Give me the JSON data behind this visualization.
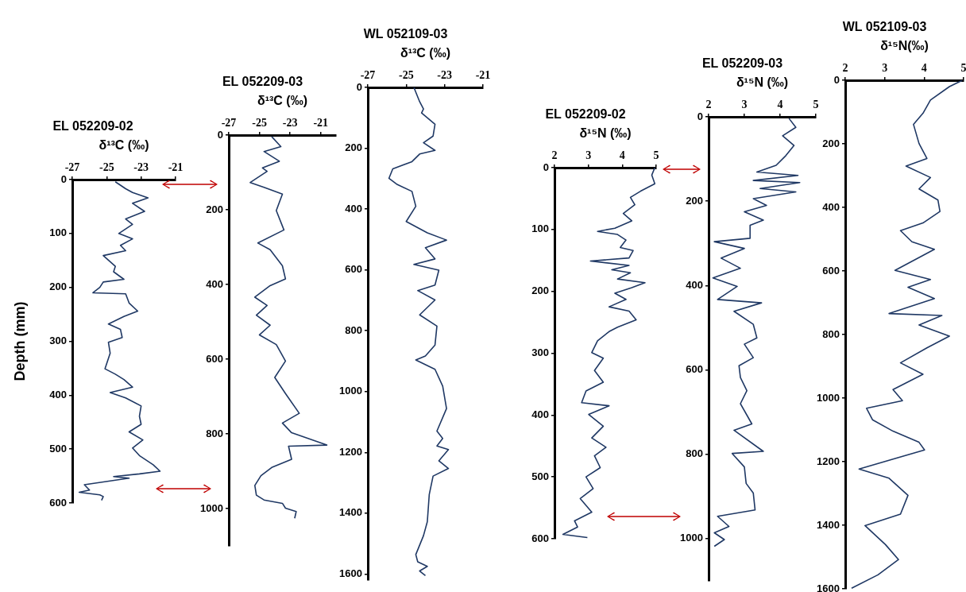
{
  "chart_data": [
    {
      "type": "line",
      "title": "EL 052209-02",
      "xlabel": "δ¹³C (‰)",
      "ylabel": "Depth (mm)",
      "xlim": [
        -27,
        -21
      ],
      "xticks": [
        -27,
        -25,
        -23,
        -21
      ],
      "ylim": [
        600,
        0
      ],
      "yticks": [
        0,
        100,
        200,
        300,
        400,
        500,
        600
      ],
      "grid": false,
      "series": [
        {
          "color": "#1f3864",
          "x": [
            -24.5,
            -23.9,
            -23.5,
            -22.6,
            -23.5,
            -22.8,
            -23.9,
            -23.5,
            -24.3,
            -23.5,
            -24.2,
            -23.9,
            -25.2,
            -24.5,
            -24.6,
            -24.0,
            -25.2,
            -25.4,
            -25.8,
            -23.9,
            -23.7,
            -23.2,
            -24.0,
            -24.9,
            -24.2,
            -24.1,
            -24.9,
            -24.8,
            -25.1,
            -24.5,
            -24.0,
            -23.5,
            -24.8,
            -23.9,
            -23.0,
            -23.1,
            -23.0,
            -23.7,
            -22.9,
            -23.5,
            -23.1,
            -22.3,
            -21.9,
            -23.1,
            -24.6,
            -23.7,
            -26.3,
            -26.0,
            -26.6,
            -25.4,
            -25.2,
            -25.3
          ],
          "values": [
            4,
            17,
            24,
            34,
            44,
            59,
            73,
            83,
            100,
            110,
            122,
            132,
            141,
            161,
            171,
            185,
            190,
            200,
            210,
            212,
            229,
            244,
            254,
            268,
            278,
            293,
            302,
            322,
            351,
            361,
            371,
            385,
            395,
            405,
            420,
            439,
            454,
            468,
            483,
            498,
            512,
            529,
            541,
            546,
            551,
            554,
            566,
            576,
            580,
            585,
            588,
            595
          ]
        }
      ]
    },
    {
      "type": "line",
      "title": "EL 052209-03",
      "xlabel": "δ¹³C (‰)",
      "xlim": [
        -27,
        -20
      ],
      "xticks": [
        -27,
        -25,
        -23,
        -21
      ],
      "ylim": [
        1100,
        0
      ],
      "yticks": [
        0,
        200,
        400,
        600,
        800,
        1000
      ],
      "grid": false,
      "series": [
        {
          "color": "#1f3864",
          "x": [
            -24.2,
            -23.6,
            -24.7,
            -23.7,
            -24.8,
            -24.5,
            -25.6,
            -24.7,
            -23.5,
            -23.9,
            -23.4,
            -25.1,
            -24.3,
            -23.5,
            -23.3,
            -24.3,
            -25.3,
            -24.5,
            -25.2,
            -24.3,
            -25.0,
            -23.9,
            -23.3,
            -24.0,
            -23.3,
            -22.4,
            -23.5,
            -22.9,
            -20.6,
            -23.1,
            -22.9,
            -24.2,
            -24.9,
            -25.3,
            -25.2,
            -24.7,
            -23.5,
            -23.3,
            -22.6,
            -22.7
          ],
          "values": [
            4,
            31,
            44,
            70,
            88,
            97,
            127,
            140,
            158,
            202,
            254,
            289,
            307,
            350,
            385,
            403,
            434,
            456,
            482,
            509,
            535,
            561,
            605,
            649,
            692,
            745,
            771,
            797,
            830,
            833,
            868,
            890,
            912,
            938,
            964,
            977,
            986,
            999,
            1008,
            1026
          ]
        }
      ]
    },
    {
      "type": "line",
      "title": "WL 052109-03",
      "xlabel": "δ¹³C (‰)",
      "xlim": [
        -27,
        -21
      ],
      "xticks": [
        -27,
        -25,
        -23,
        -21
      ],
      "ylim": [
        1620,
        0
      ],
      "yticks": [
        0,
        200,
        400,
        600,
        800,
        1000,
        1200,
        1400,
        1600
      ],
      "grid": false,
      "series": [
        {
          "color": "#1f3864",
          "x": [
            -24.6,
            -24.3,
            -24.1,
            -24.2,
            -23.5,
            -23.6,
            -24.1,
            -23.5,
            -24.3,
            -24.7,
            -25.7,
            -25.9,
            -25.5,
            -24.7,
            -24.5,
            -25.0,
            -23.9,
            -22.9,
            -24.0,
            -23.5,
            -24.6,
            -23.3,
            -23.5,
            -24.4,
            -23.5,
            -24.3,
            -23.4,
            -23.5,
            -24.0,
            -24.5,
            -23.5,
            -23.1,
            -22.9,
            -23.4,
            -23.1,
            -23.4,
            -22.8,
            -23.3,
            -22.8,
            -23.6,
            -23.8,
            -23.9,
            -24.1,
            -24.5,
            -24.4,
            -23.9,
            -24.3,
            -24.0
          ],
          "values": [
            0,
            47,
            71,
            84,
            121,
            160,
            182,
            207,
            219,
            244,
            268,
            299,
            318,
            342,
            391,
            441,
            478,
            502,
            527,
            564,
            582,
            601,
            650,
            668,
            699,
            748,
            785,
            847,
            883,
            896,
            927,
            982,
            1056,
            1130,
            1154,
            1179,
            1191,
            1228,
            1253,
            1278,
            1339,
            1428,
            1474,
            1536,
            1560,
            1575,
            1590,
            1605
          ]
        }
      ]
    },
    {
      "type": "line",
      "title": "EL 052209-02",
      "xlabel": "δ¹⁵N (‰)",
      "xlim": [
        2,
        5
      ],
      "xticks": [
        2,
        3,
        4,
        5
      ],
      "ylim": [
        600,
        0
      ],
      "yticks": [
        0,
        100,
        200,
        300,
        400,
        500,
        600
      ],
      "grid": false,
      "series": [
        {
          "color": "#1f3864",
          "x": [
            4.96,
            4.87,
            4.96,
            4.54,
            4.24,
            4.37,
            4.03,
            4.28,
            3.78,
            3.27,
            3.86,
            4.11,
            3.94,
            4.32,
            4.2,
            3.06,
            4.2,
            3.69,
            4.24,
            3.86,
            4.67,
            4.28,
            3.78,
            4.11,
            3.61,
            4.2,
            4.41,
            3.86,
            3.61,
            3.27,
            3.1,
            3.44,
            3.18,
            3.44,
            2.93,
            2.8,
            3.61,
            3.01,
            3.44,
            3.1,
            3.52,
            3.18,
            3.35,
            2.93,
            3.14,
            2.76,
            3.1,
            2.59,
            2.68,
            2.25,
            2.97
          ],
          "values": [
            0,
            12,
            26,
            38,
            48,
            60,
            74,
            86,
            98,
            103,
            108,
            117,
            129,
            134,
            146,
            151,
            158,
            165,
            170,
            180,
            186,
            194,
            203,
            213,
            225,
            232,
            246,
            258,
            265,
            280,
            299,
            308,
            328,
            347,
            361,
            380,
            385,
            399,
            418,
            437,
            452,
            466,
            485,
            500,
            519,
            535,
            557,
            571,
            581,
            593,
            598
          ]
        }
      ]
    },
    {
      "type": "line",
      "title": "EL 052209-03",
      "xlabel": "δ¹⁵N (‰)",
      "xlim": [
        2,
        5
      ],
      "xticks": [
        2,
        3,
        4,
        5
      ],
      "ylim": [
        1100,
        0
      ],
      "yticks": [
        0,
        200,
        400,
        600,
        800,
        1000
      ],
      "grid": false,
      "series": [
        {
          "color": "#1f3864",
          "x": [
            4.25,
            4.44,
            4.07,
            4.39,
            4.16,
            3.89,
            3.35,
            4.5,
            3.25,
            4.55,
            3.44,
            4.44,
            3.25,
            3.62,
            3.0,
            3.53,
            3.16,
            3.16,
            2.16,
            3.0,
            2.35,
            2.89,
            2.12,
            2.8,
            2.25,
            3.48,
            2.71,
            3.25,
            3.35,
            3.0,
            3.25,
            2.85,
            2.89,
            3.07,
            2.89,
            3.21,
            2.71,
            3.53,
            2.66,
            3.0,
            3.05,
            3.25,
            3.3,
            2.25,
            2.57,
            2.16,
            2.44,
            2.16
          ],
          "values": [
            4,
            25,
            45,
            68,
            92,
            115,
            131,
            139,
            151,
            156,
            170,
            178,
            194,
            210,
            225,
            245,
            257,
            288,
            296,
            312,
            335,
            359,
            382,
            402,
            433,
            441,
            461,
            492,
            524,
            539,
            571,
            590,
            618,
            649,
            680,
            728,
            743,
            793,
            798,
            830,
            869,
            892,
            932,
            947,
            971,
            986,
            1002,
            1018
          ]
        }
      ]
    },
    {
      "type": "line",
      "title": "WL 052109-03",
      "xlabel": "δ¹⁵N(‰)",
      "xlim": [
        2,
        5
      ],
      "xticks": [
        2,
        3,
        4,
        5
      ],
      "ylim": [
        1600,
        0
      ],
      "yticks": [
        0,
        200,
        400,
        600,
        800,
        1000,
        1200,
        1400,
        1600
      ],
      "grid": false,
      "series": [
        {
          "color": "#1f3864",
          "x": [
            4.97,
            4.64,
            4.16,
            3.97,
            3.73,
            3.87,
            4.07,
            3.54,
            4.16,
            3.87,
            4.35,
            4.4,
            3.97,
            3.4,
            3.69,
            4.26,
            3.26,
            4.16,
            3.59,
            4.26,
            3.11,
            4.45,
            3.87,
            4.64,
            4.07,
            3.4,
            3.97,
            3.21,
            3.45,
            2.54,
            2.69,
            3.21,
            3.87,
            4.01,
            3.35,
            2.35,
            3.11,
            3.59,
            3.4,
            2.5,
            3.02,
            3.35,
            2.83,
            2.16
          ],
          "values": [
            0,
            20,
            62,
            104,
            139,
            199,
            246,
            270,
            306,
            342,
            377,
            413,
            449,
            473,
            508,
            532,
            598,
            627,
            651,
            687,
            734,
            740,
            770,
            805,
            842,
            889,
            925,
            973,
            1008,
            1032,
            1068,
            1104,
            1139,
            1163,
            1187,
            1223,
            1252,
            1306,
            1365,
            1401,
            1461,
            1508,
            1556,
            1598
          ]
        }
      ]
    }
  ]
}
